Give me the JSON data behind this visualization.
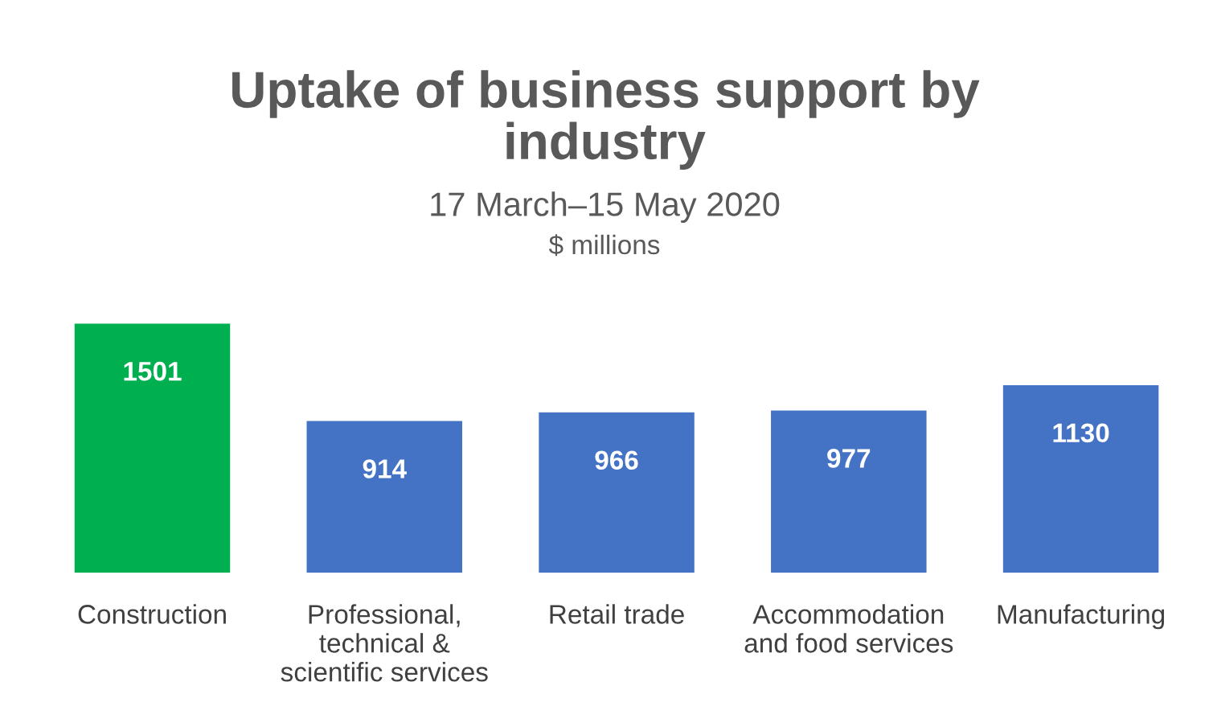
{
  "chart_data": {
    "type": "bar",
    "title": "Uptake of business support by\nindustry",
    "subtitle": "17 March–15 May 2020",
    "annotations": [
      "$ millions"
    ],
    "categories": [
      "Construction",
      "Professional,\ntechnical &\nscientific services",
      "Retail trade",
      "Accommodation\nand food services",
      "Manufacturing"
    ],
    "values": [
      1501,
      914,
      966,
      977,
      1130
    ],
    "colors": [
      "#00b050",
      "#4472c4",
      "#4472c4",
      "#4472c4",
      "#4472c4"
    ],
    "data_labels": true,
    "grid": false,
    "legend": false
  }
}
